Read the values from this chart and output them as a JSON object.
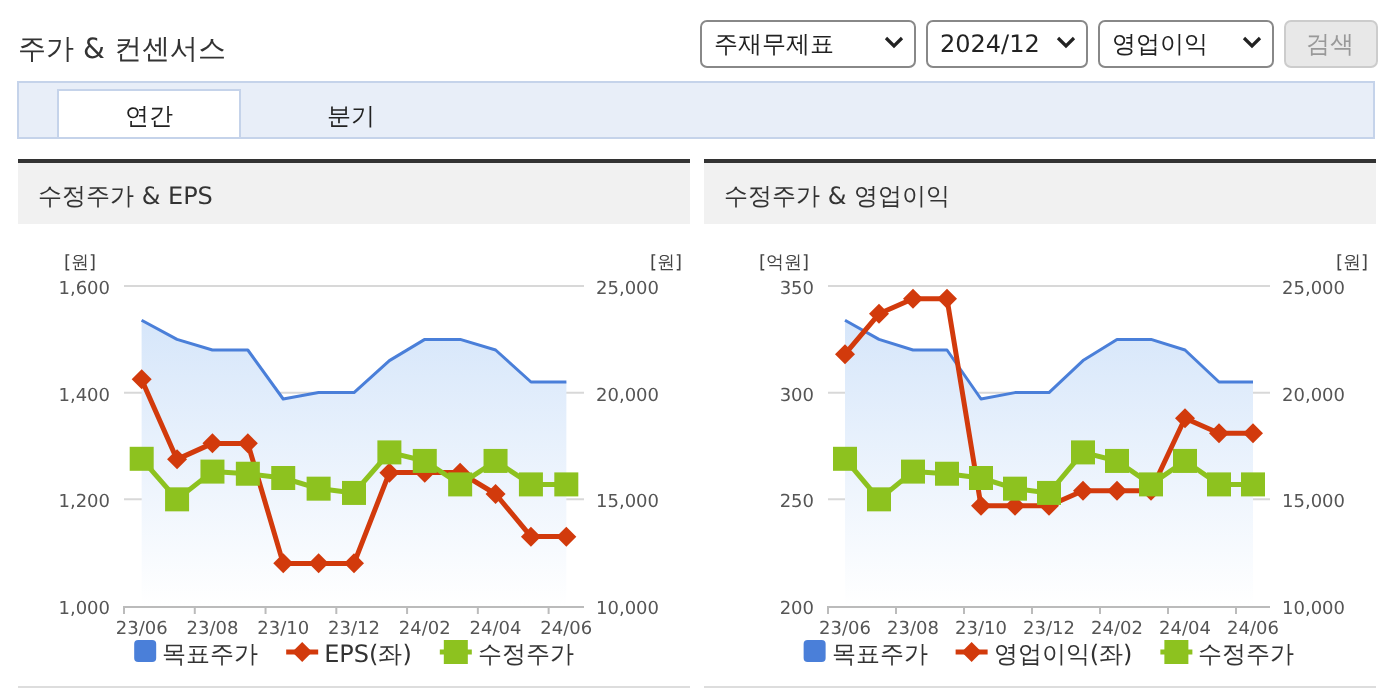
{
  "chart_data": [
    {
      "type": "line",
      "title": "수정주가 & EPS",
      "annotations": [
        "주가 & 컨센서스",
        "주재무제표",
        "2024/12",
        "영업이익",
        "검색",
        "연간",
        "분기"
      ],
      "ylabel": "[원]",
      "y2label": "[원]",
      "categories": [
        "23/06",
        null,
        "23/08",
        null,
        "23/10",
        null,
        "23/12",
        null,
        "24/02",
        null,
        "24/04",
        null,
        "24/06"
      ],
      "ylim": [
        1000,
        1600
      ],
      "yticks": [
        {
          "value": 1000,
          "label": "1,000"
        },
        {
          "value": 1200,
          "label": "1,200"
        },
        {
          "value": 1400,
          "label": "1,400"
        },
        {
          "value": 1600,
          "label": "1,600"
        }
      ],
      "y2lim": [
        10000,
        25000
      ],
      "y2ticks": [
        {
          "value": 10000,
          "label": "10,000"
        },
        {
          "value": 15000,
          "label": "15,000"
        },
        {
          "value": 20000,
          "label": "20,000"
        },
        {
          "value": 25000,
          "label": "25,000"
        }
      ],
      "grid": "y",
      "legend": "bottom",
      "series": [
        {
          "name": "목표주가",
          "type": "area",
          "axis": "y2",
          "color": "#4a7fd9",
          "values": [
            23400,
            22500,
            22000,
            22000,
            19700,
            20000,
            20000,
            21500,
            22500,
            22500,
            22000,
            20500,
            20500
          ]
        },
        {
          "name": "EPS(좌)",
          "type": "line",
          "axis": "y",
          "color": "#d23a0c",
          "marker": "diamond",
          "values": [
            1425,
            1275,
            1305,
            1305,
            1080,
            1080,
            1080,
            1250,
            1250,
            1250,
            1210,
            1130,
            1130
          ]
        },
        {
          "name": "수정주가",
          "type": "line",
          "axis": "y2",
          "color": "#8dc21f",
          "marker": "square",
          "values": [
            16900,
            15000,
            16300,
            16200,
            16000,
            15500,
            15300,
            17200,
            16800,
            15700,
            16800,
            15700,
            15700
          ]
        }
      ]
    },
    {
      "type": "line",
      "title": "수정주가 & 영업이익",
      "ylabel": "[억원]",
      "y2label": "[원]",
      "categories": [
        "23/06",
        null,
        "23/08",
        null,
        "23/10",
        null,
        "23/12",
        null,
        "24/02",
        null,
        "24/04",
        null,
        "24/06"
      ],
      "ylim": [
        200,
        350
      ],
      "yticks": [
        200,
        250,
        300,
        350
      ],
      "y2lim": [
        10000,
        25000
      ],
      "y2ticks": [
        {
          "value": 10000,
          "label": "10,000"
        },
        {
          "value": 15000,
          "label": "15,000"
        },
        {
          "value": 20000,
          "label": "20,000"
        },
        {
          "value": 25000,
          "label": "25,000"
        }
      ],
      "grid": "y",
      "legend": "bottom",
      "series": [
        {
          "name": "목표주가",
          "type": "area",
          "axis": "y2",
          "color": "#4a7fd9",
          "values": [
            23400,
            22500,
            22000,
            22000,
            19700,
            20000,
            20000,
            21500,
            22500,
            22500,
            22000,
            20500,
            20500
          ]
        },
        {
          "name": "영업이익(좌)",
          "type": "line",
          "axis": "y",
          "color": "#d23a0c",
          "marker": "diamond",
          "values": [
            318,
            337,
            344,
            344,
            247,
            247,
            247,
            254,
            254,
            254,
            288,
            281,
            281
          ]
        },
        {
          "name": "수정주가",
          "type": "line",
          "axis": "y2",
          "color": "#8dc21f",
          "marker": "square",
          "values": [
            16900,
            15000,
            16300,
            16200,
            16000,
            15500,
            15300,
            17200,
            16800,
            15700,
            16800,
            15700,
            15700
          ]
        }
      ]
    }
  ]
}
